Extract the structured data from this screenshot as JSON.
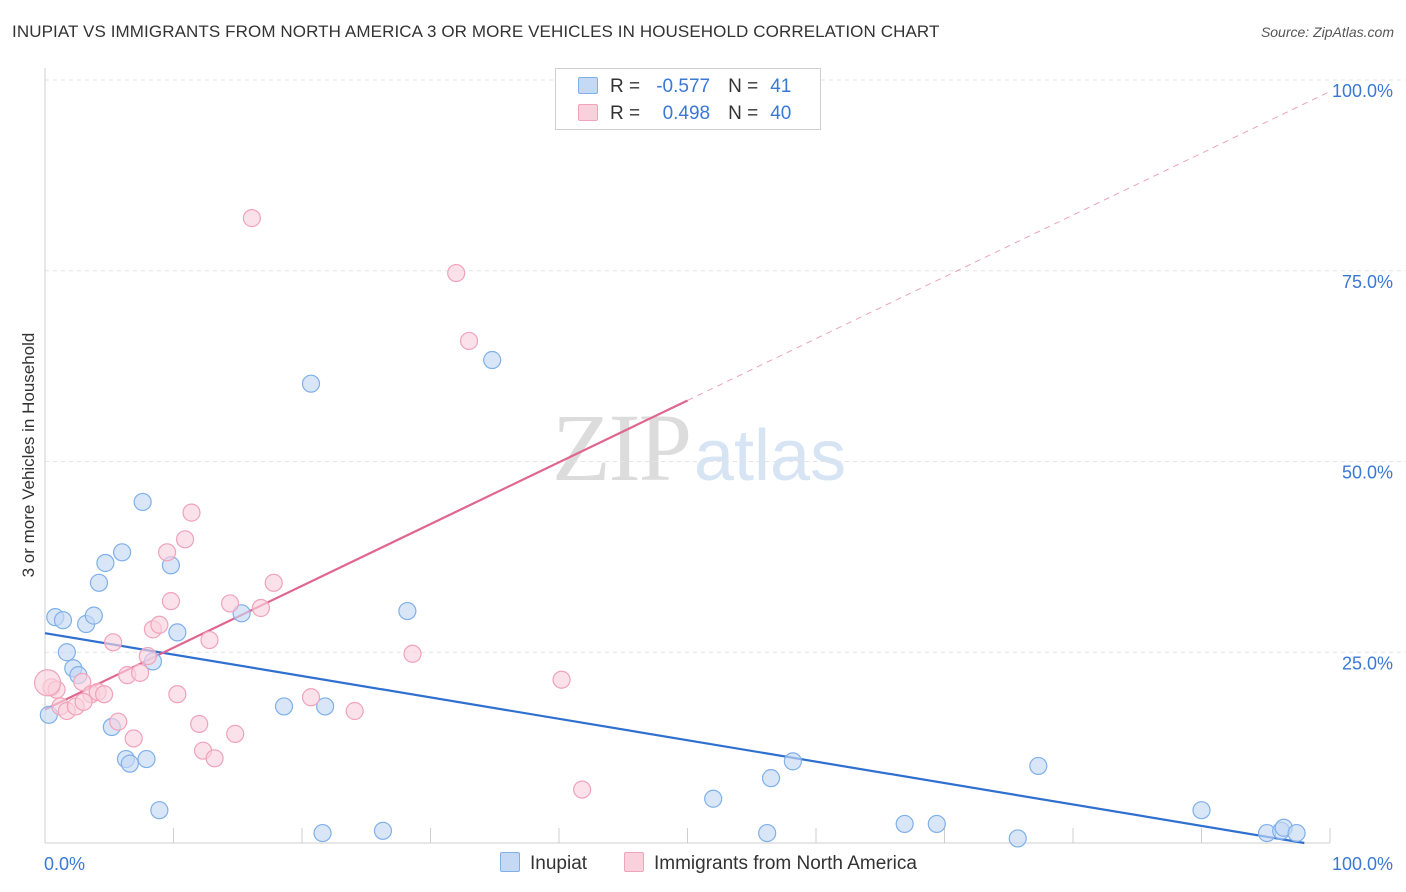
{
  "header": {
    "title": "INUPIAT VS IMMIGRANTS FROM NORTH AMERICA 3 OR MORE VEHICLES IN HOUSEHOLD CORRELATION CHART",
    "source": "Source: ZipAtlas.com"
  },
  "watermark": {
    "zip": "ZIP",
    "atlas": "atlas"
  },
  "legend": {
    "series1": {
      "r_label": "R =",
      "r_value": "-0.577",
      "n_label": "N =",
      "n_value": "41"
    },
    "series2": {
      "r_label": "R =",
      "r_value": "0.498",
      "n_label": "N =",
      "n_value": "40"
    }
  },
  "chart_data": {
    "type": "scatter",
    "title": "INUPIAT VS IMMIGRANTS FROM NORTH AMERICA 3 OR MORE VEHICLES IN HOUSEHOLD CORRELATION CHART",
    "xlabel": "",
    "ylabel": "3 or more Vehicles in Household",
    "xlim": [
      0,
      100
    ],
    "ylim": [
      0,
      100
    ],
    "x_tick_labels": [
      "0.0%",
      "100.0%"
    ],
    "y_tick_labels": [
      "25.0%",
      "50.0%",
      "75.0%",
      "100.0%"
    ],
    "y_ticks": [
      25,
      50,
      75,
      100
    ],
    "grid": true,
    "legend_position": "top-center",
    "series": [
      {
        "name": "Inupiat",
        "color": "#7fb0ea",
        "fill": "#c5d9f5",
        "line_color": "#2f6fd0",
        "r": -0.577,
        "n": 41,
        "trend": {
          "x0": 0,
          "y0": 27.5,
          "x1": 98,
          "y1": 0,
          "dashed_to": null
        },
        "points": [
          [
            0.3,
            16.8
          ],
          [
            0.8,
            29.6
          ],
          [
            1.4,
            29.2
          ],
          [
            1.7,
            25.0
          ],
          [
            2.2,
            22.9
          ],
          [
            2.6,
            22.0
          ],
          [
            3.2,
            28.7
          ],
          [
            3.8,
            29.8
          ],
          [
            4.2,
            34.1
          ],
          [
            4.7,
            36.7
          ],
          [
            5.2,
            15.2
          ],
          [
            6.0,
            38.1
          ],
          [
            6.3,
            11.0
          ],
          [
            6.6,
            10.4
          ],
          [
            7.6,
            44.7
          ],
          [
            7.9,
            11.0
          ],
          [
            8.4,
            23.8
          ],
          [
            8.9,
            4.3
          ],
          [
            9.8,
            36.4
          ],
          [
            10.3,
            27.6
          ],
          [
            15.3,
            30.1
          ],
          [
            18.6,
            17.9
          ],
          [
            20.7,
            60.2
          ],
          [
            21.6,
            1.3
          ],
          [
            21.8,
            17.9
          ],
          [
            26.3,
            1.6
          ],
          [
            28.2,
            30.4
          ],
          [
            34.8,
            63.3
          ],
          [
            52.0,
            5.8
          ],
          [
            56.2,
            1.3
          ],
          [
            56.5,
            8.5
          ],
          [
            58.2,
            10.7
          ],
          [
            66.9,
            2.5
          ],
          [
            69.4,
            2.5
          ],
          [
            75.7,
            0.6
          ],
          [
            77.3,
            10.1
          ],
          [
            90.0,
            4.3
          ],
          [
            95.1,
            1.3
          ],
          [
            96.2,
            1.6
          ],
          [
            96.4,
            2.0
          ],
          [
            97.4,
            1.3
          ]
        ]
      },
      {
        "name": "Immigrants from North America",
        "color": "#f0a3bb",
        "fill": "#f9d1dd",
        "line_color": "#e0668f",
        "r": 0.498,
        "n": 40,
        "trend": {
          "x0": 0,
          "y0": 17.5,
          "x1": 50,
          "y1": 58,
          "dashed_to": {
            "x": 100,
            "y": 98.5
          }
        },
        "points": [
          [
            0.5,
            20.4
          ],
          [
            0.9,
            20.1
          ],
          [
            1.2,
            17.9
          ],
          [
            1.7,
            17.3
          ],
          [
            2.4,
            17.9
          ],
          [
            2.9,
            21.1
          ],
          [
            3.6,
            19.5
          ],
          [
            4.1,
            19.8
          ],
          [
            4.6,
            19.5
          ],
          [
            5.3,
            26.3
          ],
          [
            5.7,
            15.9
          ],
          [
            6.4,
            22.0
          ],
          [
            6.9,
            13.7
          ],
          [
            7.4,
            22.3
          ],
          [
            8.0,
            24.5
          ],
          [
            8.4,
            28.0
          ],
          [
            8.9,
            28.6
          ],
          [
            9.5,
            38.1
          ],
          [
            9.8,
            31.7
          ],
          [
            10.3,
            19.5
          ],
          [
            10.9,
            39.8
          ],
          [
            11.4,
            43.3
          ],
          [
            12.0,
            15.6
          ],
          [
            12.3,
            12.1
          ],
          [
            12.8,
            26.6
          ],
          [
            13.2,
            11.1
          ],
          [
            14.4,
            31.4
          ],
          [
            14.8,
            14.3
          ],
          [
            16.1,
            81.9
          ],
          [
            16.8,
            30.8
          ],
          [
            17.8,
            34.1
          ],
          [
            20.7,
            19.1
          ],
          [
            24.1,
            17.3
          ],
          [
            28.6,
            24.8
          ],
          [
            32.0,
            74.7
          ],
          [
            33.0,
            65.8
          ],
          [
            40.2,
            21.4
          ],
          [
            41.8,
            7.0
          ],
          [
            0.2,
            21.0
          ],
          [
            3.0,
            18.5
          ]
        ]
      }
    ]
  }
}
